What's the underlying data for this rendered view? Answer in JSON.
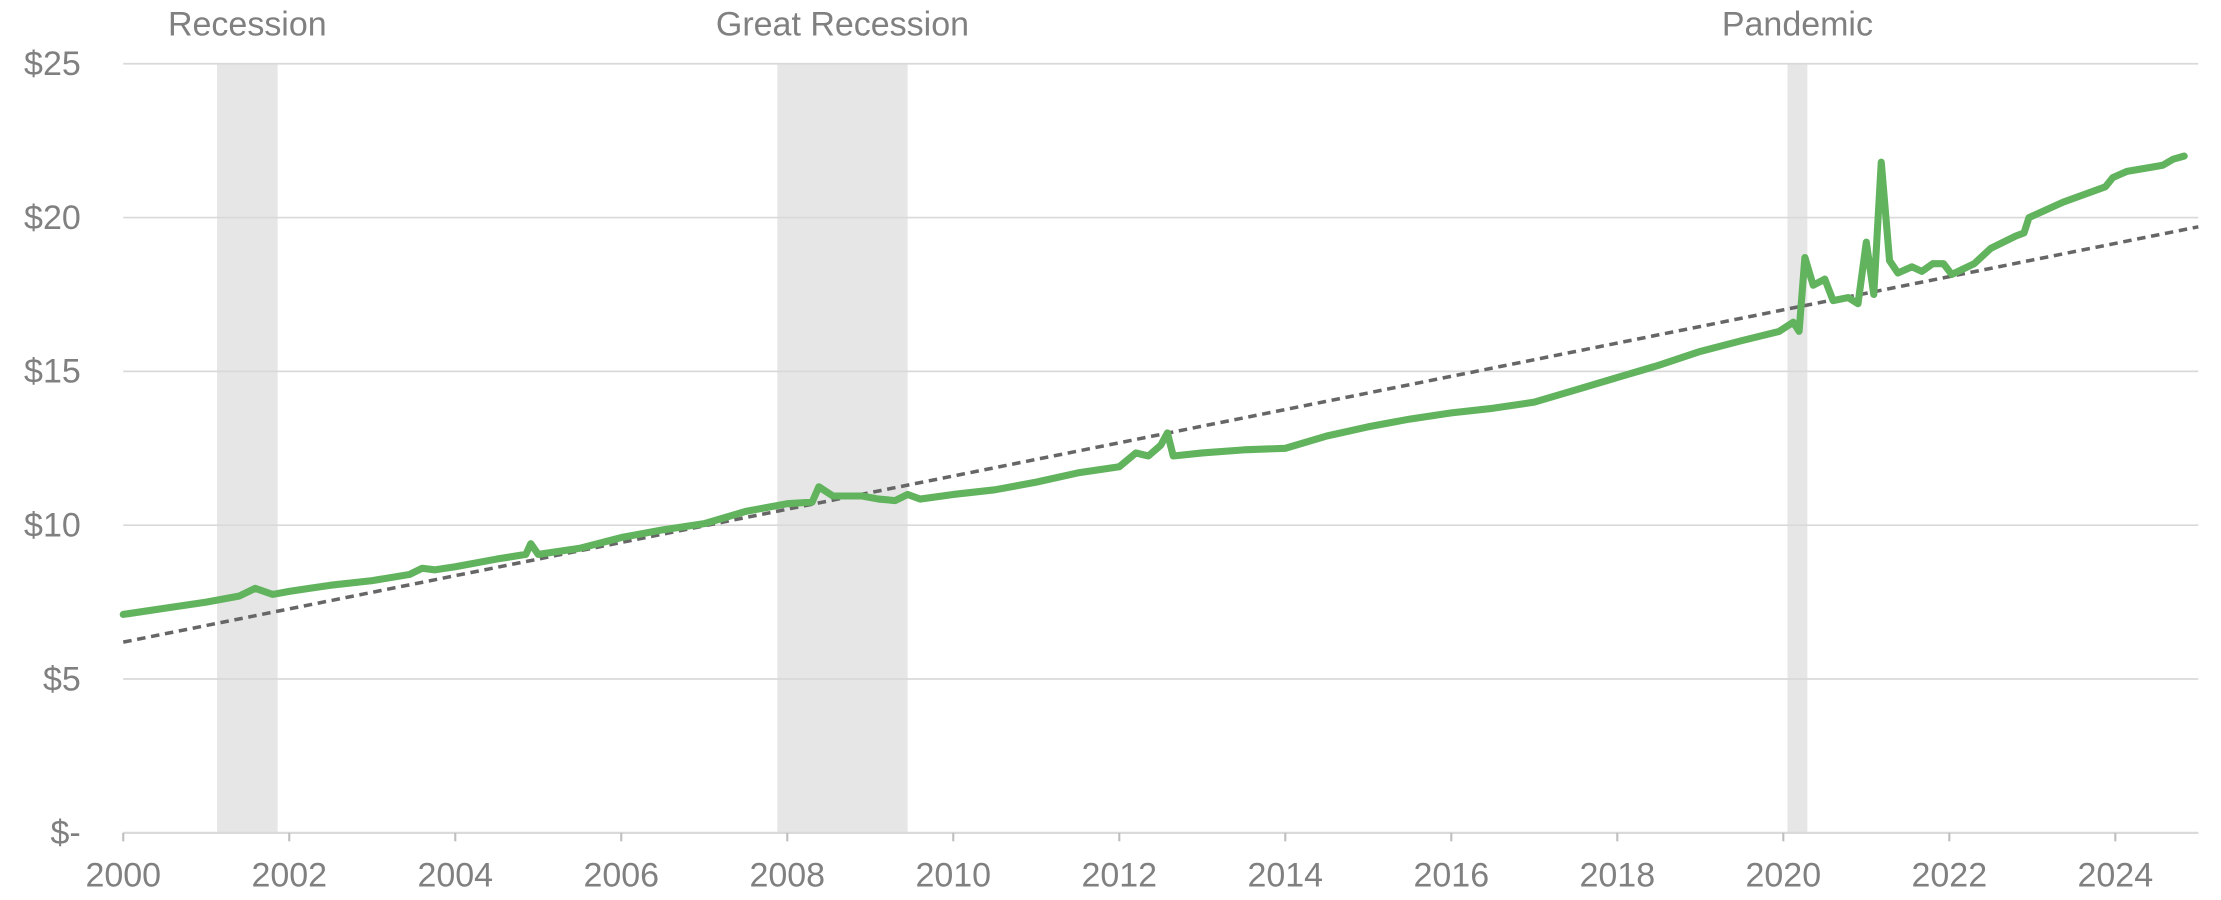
{
  "chart_data": {
    "type": "line",
    "color": "#62b35e",
    "x": [
      2000,
      2000.5,
      2001,
      2001.4,
      2001.59,
      2001.8,
      2002,
      2002.25,
      2002.5,
      2003,
      2003.45,
      2003.6,
      2003.75,
      2004,
      2004.5,
      2004.85,
      2004.91,
      2005,
      2005.5,
      2006,
      2006.5,
      2007,
      2007.5,
      2008,
      2008.3,
      2008.38,
      2008.55,
      2008.9,
      2009.1,
      2009.3,
      2009.45,
      2009.6,
      2010,
      2010.5,
      2011,
      2011.5,
      2012,
      2012.2,
      2012.35,
      2012.5,
      2012.58,
      2012.65,
      2013,
      2013.5,
      2014,
      2014.5,
      2015,
      2015.5,
      2016,
      2016.5,
      2017,
      2017.5,
      2018,
      2018.5,
      2019,
      2019.5,
      2019.95,
      2020.12,
      2020.19,
      2020.26,
      2020.36,
      2020.5,
      2020.6,
      2020.78,
      2020.9,
      2021.0,
      2021.09,
      2021.18,
      2021.28,
      2021.38,
      2021.55,
      2021.67,
      2021.8,
      2021.93,
      2022.03,
      2022.3,
      2022.5,
      2022.8,
      2022.9,
      2022.96,
      2023.37,
      2023.88,
      2023.97,
      2024.14,
      2024.57,
      2024.7,
      2024.83
    ],
    "values": [
      7.1,
      7.3,
      7.5,
      7.7,
      7.95,
      7.75,
      7.85,
      7.95,
      8.05,
      8.2,
      8.4,
      8.6,
      8.55,
      8.65,
      8.9,
      9.05,
      9.4,
      9.05,
      9.25,
      9.6,
      9.85,
      10.05,
      10.45,
      10.7,
      10.75,
      11.25,
      10.95,
      10.95,
      10.85,
      10.8,
      11.0,
      10.85,
      11.0,
      11.15,
      11.4,
      11.7,
      11.9,
      12.35,
      12.25,
      12.6,
      13.0,
      12.25,
      12.35,
      12.45,
      12.5,
      12.9,
      13.2,
      13.45,
      13.65,
      13.8,
      14.0,
      14.4,
      14.8,
      15.2,
      15.65,
      16.0,
      16.3,
      16.6,
      16.3,
      18.7,
      17.8,
      18.0,
      17.3,
      17.4,
      17.2,
      19.2,
      17.5,
      21.8,
      18.6,
      18.2,
      18.4,
      18.25,
      18.5,
      18.5,
      18.15,
      18.5,
      19.0,
      19.4,
      19.5,
      20.0,
      20.5,
      21.0,
      21.3,
      21.5,
      21.7,
      21.9,
      22.0
    ],
    "trend_line": {
      "x": [
        2000,
        2025
      ],
      "values": [
        6.2,
        19.7
      ],
      "color": "#666666",
      "dashed": true
    },
    "shaded_periods": [
      {
        "label": "Recession",
        "start": 2001.13,
        "end": 2001.86
      },
      {
        "label": "Great Recession",
        "start": 2007.88,
        "end": 2009.45
      },
      {
        "label": "Pandemic",
        "start": 2020.05,
        "end": 2020.29
      }
    ],
    "shade_color": "#e6e6e6",
    "xlim": [
      2000,
      2025
    ],
    "xticks": [
      2000,
      2002,
      2004,
      2006,
      2008,
      2010,
      2012,
      2014,
      2016,
      2018,
      2020,
      2022,
      2024
    ],
    "ylim": [
      0,
      25
    ],
    "yticks": [
      {
        "value": 0,
        "label": "$-"
      },
      {
        "value": 5,
        "label": "$5"
      },
      {
        "value": 10,
        "label": "$10"
      },
      {
        "value": 15,
        "label": "$15"
      },
      {
        "value": 20,
        "label": "$20"
      },
      {
        "value": 25,
        "label": "$25"
      }
    ],
    "grid": true
  }
}
